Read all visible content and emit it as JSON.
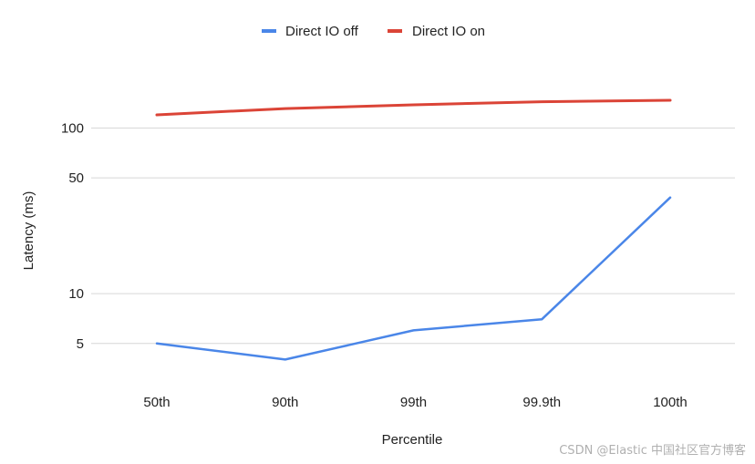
{
  "chart_data": {
    "type": "line",
    "title": "",
    "xlabel": "Percentile",
    "ylabel": "Latency (ms)",
    "y_scale": "log",
    "ylim": [
      3.2,
      260
    ],
    "y_ticks": [
      5,
      10,
      50,
      100
    ],
    "grid": true,
    "legend_position": "top",
    "categories": [
      "50th",
      "90th",
      "99th",
      "99.9th",
      "100th"
    ],
    "series": [
      {
        "name": "Direct IO off",
        "color": "#4a86e8",
        "values": [
          5,
          4,
          6,
          7,
          38
        ]
      },
      {
        "name": "Direct IO on",
        "color": "#db4437",
        "values": [
          120,
          131,
          138,
          144,
          147
        ]
      }
    ]
  },
  "watermark": "CSDN @Elastic 中国社区官方博客"
}
